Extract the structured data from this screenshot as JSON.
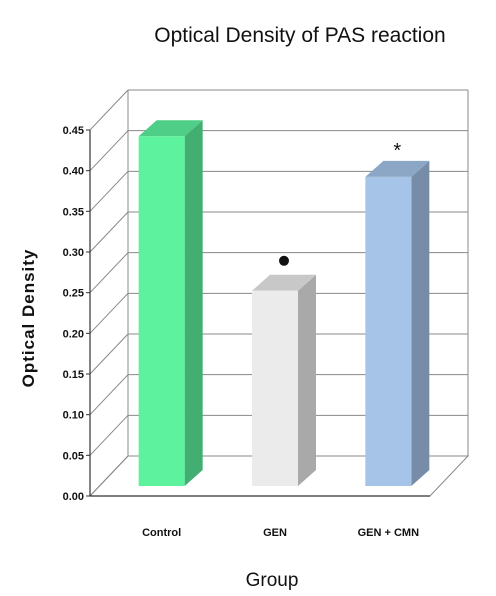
{
  "chart_data": {
    "type": "bar",
    "title": "Optical Density of PAS reaction",
    "xlabel": "Group",
    "ylabel": "Optical Density",
    "categories": [
      "Control",
      "GEN",
      "GEN + CMN"
    ],
    "values": [
      0.43,
      0.24,
      0.38
    ],
    "annotations": [
      "",
      "●",
      "*"
    ],
    "ylim": [
      0,
      0.45
    ],
    "yticks": [
      "0.00",
      "0.05",
      "0.10",
      "0.15",
      "0.20",
      "0.25",
      "0.30",
      "0.35",
      "0.40",
      "0.45"
    ],
    "grid": true,
    "style": "3d-column",
    "colors": {
      "Control": "#5cf29e",
      "GEN": "#ebebeb",
      "GEN + CMN": "#a5c4e8",
      "gridline": "#888888"
    }
  }
}
